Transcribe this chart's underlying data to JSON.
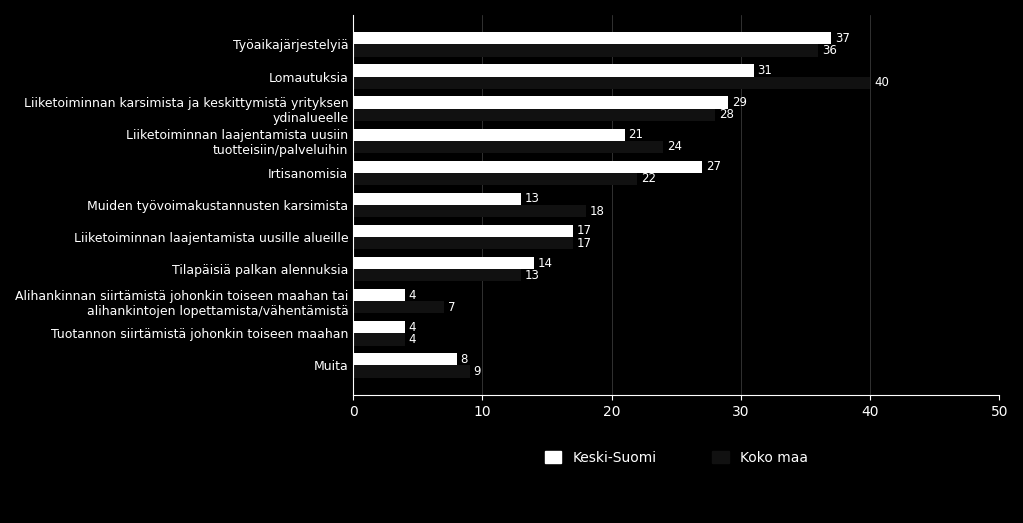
{
  "categories": [
    "Työaikajärjestelyiä",
    "Lomautuksia",
    "Liiketoiminnan karsimista ja keskittymistä yrityksen\nydinalueelle",
    "Liiketoiminnan laajentamista uusiin\ntuotteisiin/palveluihin",
    "Irtisanomisia",
    "Muiden työvoimakustannusten karsimista",
    "Liiketoiminnan laajentamista uusille alueille",
    "Tilapäisiä palkan alennuksia",
    "Alihankinnan siirtämistä johonkin toiseen maahan tai\nalihankintojen lopettamista/vähentämistä",
    "Tuotannon siirtämistä johonkin toiseen maahan",
    "Muita"
  ],
  "keski_suomi": [
    37,
    31,
    29,
    21,
    27,
    13,
    17,
    14,
    4,
    4,
    8
  ],
  "koko_maa": [
    36,
    40,
    28,
    24,
    22,
    18,
    17,
    13,
    7,
    4,
    9
  ],
  "keski_suomi_color": "#ffffff",
  "koko_maa_color": "#111111",
  "background_color": "#000000",
  "text_color": "#ffffff",
  "bar_height": 0.38,
  "xlim": [
    0,
    50
  ],
  "legend_keski": "Keski-Suomi",
  "legend_koko": "Koko maa",
  "label_fontsize": 9.0,
  "tick_fontsize": 10,
  "value_fontsize": 8.5
}
